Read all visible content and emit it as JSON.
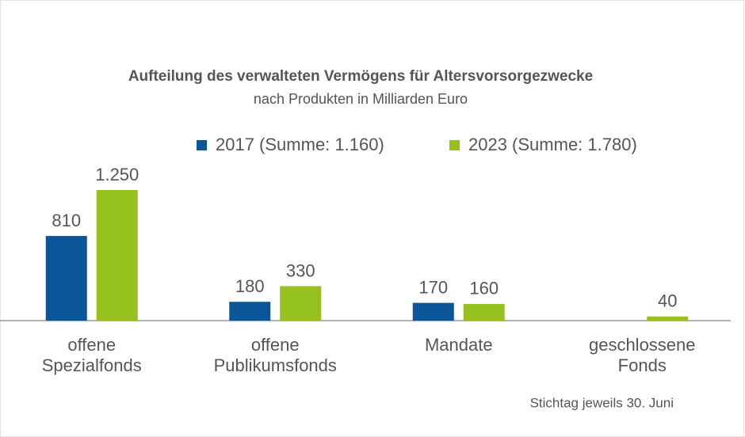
{
  "chart_data": {
    "type": "bar",
    "title": "Aufteilung des verwalteten Vermögens für Altersvorsorgezwecke",
    "subtitle": "nach Produkten in Milliarden Euro",
    "categories": [
      [
        "offene",
        "Spezialfonds"
      ],
      [
        "offene",
        "Publikumsfonds"
      ],
      [
        "Mandate"
      ],
      [
        "geschlossene",
        "Fonds"
      ]
    ],
    "series": [
      {
        "name": "2017 (Summe: 1.160)",
        "color": "#0b5598",
        "values": [
          810,
          180,
          170,
          null
        ],
        "value_labels": [
          "810",
          "180",
          "170",
          null
        ]
      },
      {
        "name": "2023 (Summe: 1.780)",
        "color": "#97c11f",
        "values": [
          1250,
          330,
          160,
          40
        ],
        "value_labels": [
          "1.250",
          "330",
          "160",
          "40"
        ]
      }
    ],
    "note": "Stichtag jeweils 30. Juni"
  }
}
